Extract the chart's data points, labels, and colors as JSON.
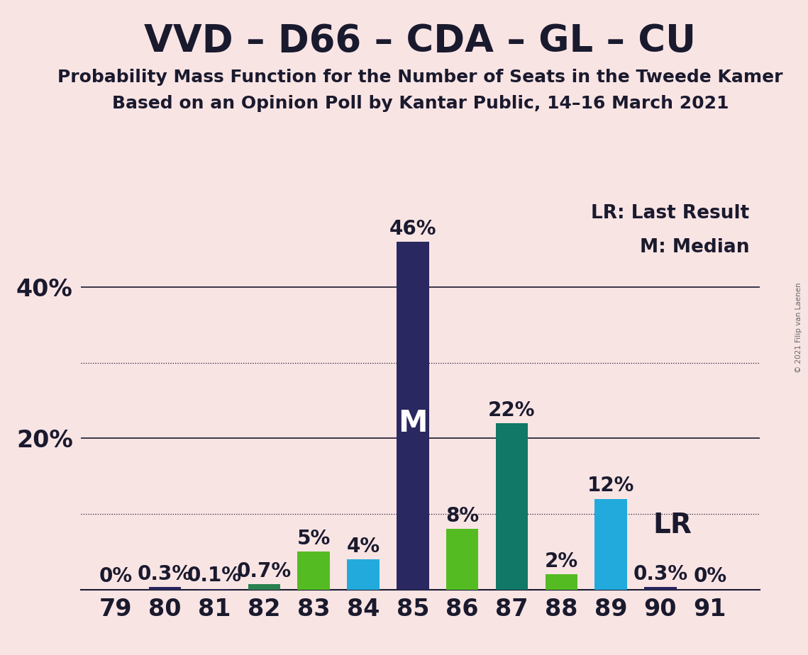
{
  "title": "VVD – D66 – CDA – GL – CU",
  "subtitle1": "Probability Mass Function for the Number of Seats in the Tweede Kamer",
  "subtitle2": "Based on an Opinion Poll by Kantar Public, 14–16 March 2021",
  "watermark": "© 2021 Filip van Laenen",
  "categories": [
    79,
    80,
    81,
    82,
    83,
    84,
    85,
    86,
    87,
    88,
    89,
    90,
    91
  ],
  "values": [
    0.0,
    0.3,
    0.1,
    0.7,
    5.0,
    4.0,
    46.0,
    8.0,
    22.0,
    2.0,
    12.0,
    0.3,
    0.0
  ],
  "bar_colors": [
    "#2a2860",
    "#2a2860",
    "#2a2860",
    "#2a8050",
    "#55bb22",
    "#22aadd",
    "#2a2860",
    "#55bb22",
    "#117766",
    "#55bb22",
    "#22aadd",
    "#2a2860",
    "#2a2860"
  ],
  "bar_labels": [
    "0%",
    "0.3%",
    "0.1%",
    "0.7%",
    "5%",
    "4%",
    "46%",
    "8%",
    "22%",
    "2%",
    "12%",
    "0.3%",
    "0%"
  ],
  "median_bar_idx": 6,
  "lr_label_after_idx": 10,
  "legend_lr": "LR: Last Result",
  "legend_m": "M: Median",
  "solid_lines": [
    20,
    40
  ],
  "dotted_lines": [
    10,
    30
  ],
  "ytick_positions": [
    20,
    40
  ],
  "ytick_labels": [
    "20%",
    "40%"
  ],
  "ylim": [
    0,
    52
  ],
  "background_color": "#f9e4e4",
  "bar_width": 0.65,
  "title_fontsize": 38,
  "subtitle_fontsize": 18,
  "tick_fontsize": 24,
  "legend_fontsize": 19,
  "bar_label_fontsize": 20,
  "m_label_fontsize": 30,
  "lr_label_fontsize": 28
}
